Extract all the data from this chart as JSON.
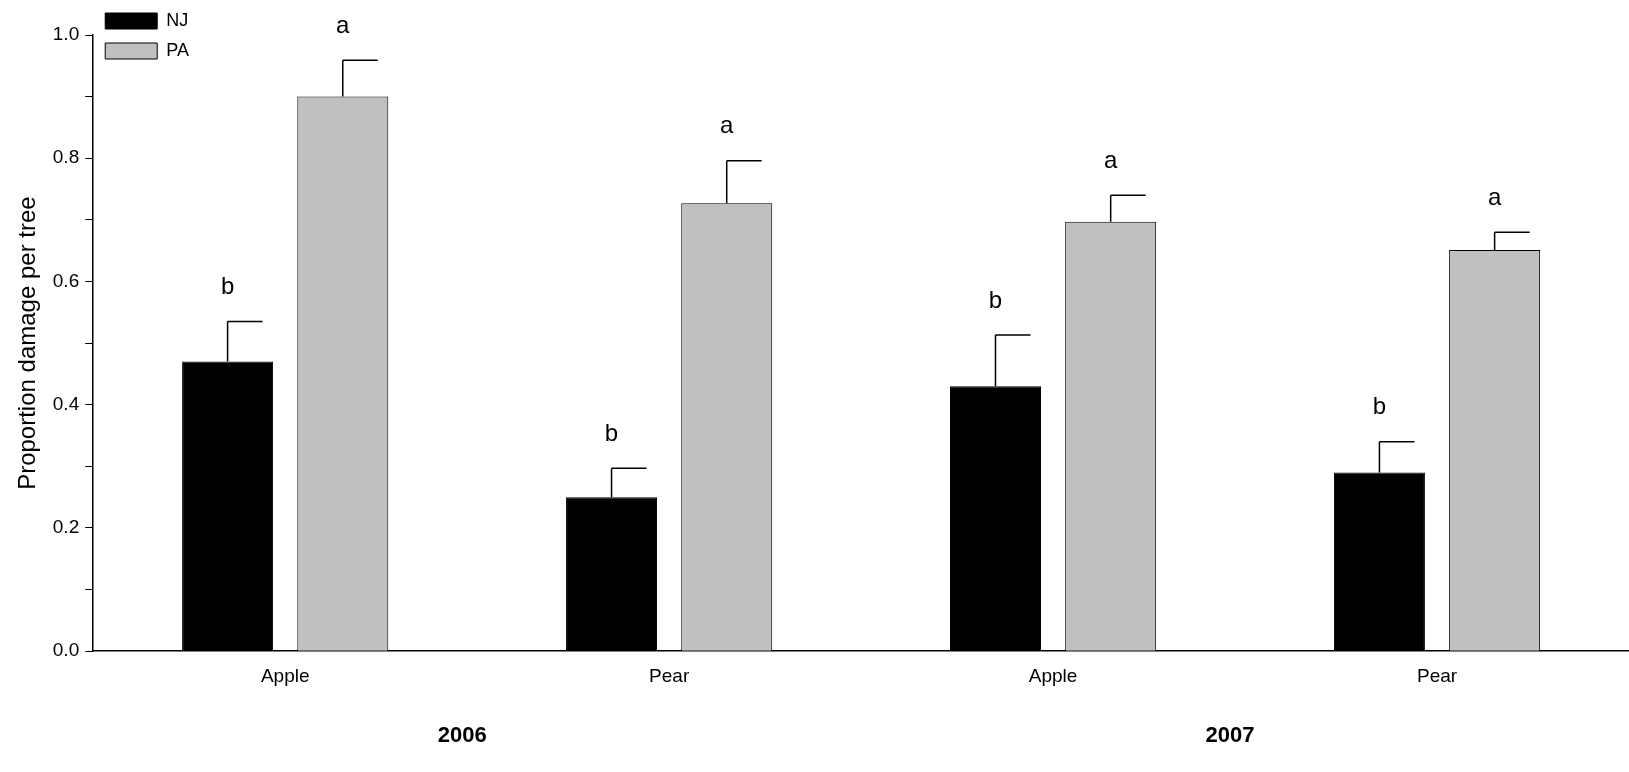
{
  "chart_data": {
    "type": "bar",
    "ylabel": "Proportion damage per tree",
    "categories": [
      "Apple",
      "Pear",
      "Apple",
      "Pear"
    ],
    "series": [
      {
        "name": "NJ",
        "color": "#000000",
        "values": [
          0.47,
          0.25,
          0.43,
          0.29
        ],
        "errors": [
          [
            0.47,
            0.535
          ],
          [
            0.25,
            0.297
          ],
          [
            0.43,
            0.513
          ],
          [
            0.29,
            0.34
          ]
        ],
        "value_labels": [
          "b",
          "b",
          "b",
          "b"
        ]
      },
      {
        "name": "PA",
        "color": "#c0c0c0",
        "values": [
          0.9,
          0.727,
          0.697,
          0.651
        ],
        "errors": [
          [
            0.9,
            0.959
          ],
          [
            0.727,
            0.796
          ],
          [
            0.697,
            0.74
          ],
          [
            0.651,
            0.68
          ]
        ],
        "value_labels": [
          "a",
          "a",
          "a",
          "a"
        ]
      }
    ],
    "annotations": [
      "2006",
      "2007"
    ],
    "ylim": [
      0,
      1
    ],
    "yticks": [
      {
        "value": 0,
        "label": "0.0"
      },
      {
        "value": 0.1,
        "label": null
      },
      {
        "value": 0.2,
        "label": "0.2"
      },
      {
        "value": 0.3,
        "label": null
      },
      {
        "value": 0.4,
        "label": "0.4"
      },
      {
        "value": 0.5,
        "label": null
      },
      {
        "value": 0.6,
        "label": "0.6"
      },
      {
        "value": 0.7,
        "label": null
      },
      {
        "value": 0.8,
        "label": "0.8"
      },
      {
        "value": 0.9,
        "label": null
      },
      {
        "value": 1,
        "label": "1.0"
      }
    ],
    "grid": false,
    "legend": "top left"
  }
}
